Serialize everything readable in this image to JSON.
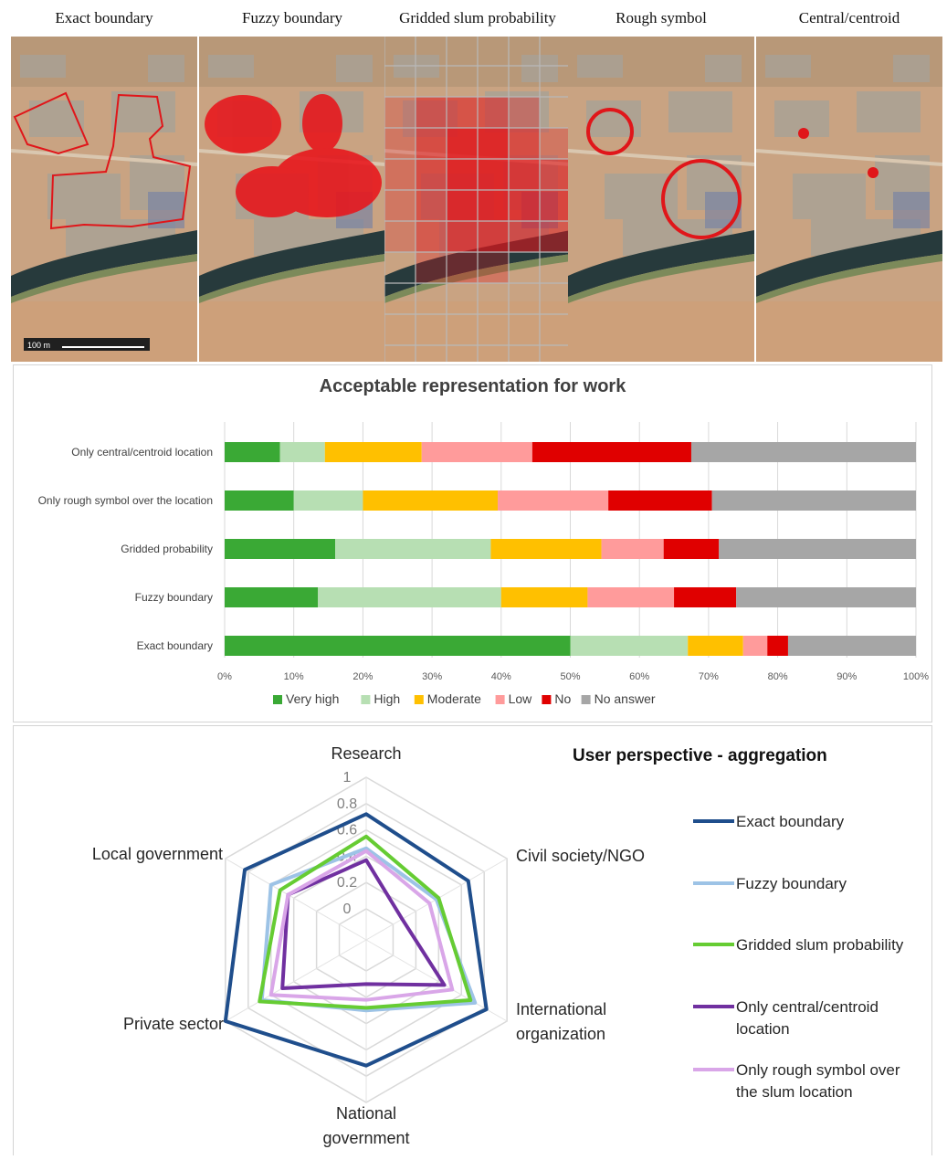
{
  "panels": [
    {
      "title": "Exact boundary",
      "scale_label": "100 m"
    },
    {
      "title": "Fuzzy boundary"
    },
    {
      "title": "Gridded slum probability"
    },
    {
      "title": "Rough symbol"
    },
    {
      "title": "Central/centroid"
    }
  ],
  "colors": {
    "very_high": "#3aa935",
    "high": "#b7dfb3",
    "moderate": "#ffc000",
    "low": "#ff9b9b",
    "no": "#e00000",
    "no_answer": "#a6a6a6",
    "exact": "#1f4e8c",
    "fuzzy": "#9dc3e6",
    "gridded": "#66cc33",
    "centroid": "#7030a0",
    "rough": "#d9a6e8"
  },
  "chart_data": [
    {
      "type": "bar",
      "stacked": true,
      "orientation": "horizontal",
      "title": "Acceptable representation for work",
      "categories": [
        "Only central/centroid location",
        "Only rough symbol over the location",
        "Gridded probability",
        "Fuzzy boundary",
        "Exact boundary"
      ],
      "series": [
        {
          "name": "Very high",
          "color": "#3aa935",
          "values": [
            8,
            10,
            16,
            13.5,
            50
          ]
        },
        {
          "name": "High",
          "color": "#b7dfb3",
          "values": [
            6.5,
            10,
            22.5,
            26.5,
            17
          ]
        },
        {
          "name": "Moderate",
          "color": "#ffc000",
          "values": [
            14,
            19.5,
            16,
            12.5,
            8
          ]
        },
        {
          "name": "Low",
          "color": "#ff9b9b",
          "values": [
            16,
            16,
            9,
            12.5,
            3.5
          ]
        },
        {
          "name": "No",
          "color": "#e00000",
          "values": [
            23,
            15,
            8,
            9,
            3
          ]
        },
        {
          "name": "No answer",
          "color": "#a6a6a6",
          "values": [
            32.5,
            29.5,
            28.5,
            26,
            18.5
          ]
        }
      ],
      "xlim": [
        0,
        100
      ],
      "xticks": [
        "0%",
        "10%",
        "20%",
        "30%",
        "40%",
        "50%",
        "60%",
        "70%",
        "80%",
        "90%",
        "100%"
      ],
      "grid": true,
      "legend": "bottom"
    },
    {
      "type": "radar",
      "title": "User perspective - aggregation",
      "axes": [
        "Research",
        "Civil society/NGO",
        "International organization",
        "National government",
        "Private sector",
        "Local government"
      ],
      "axis_label_lines": [
        [
          "Research"
        ],
        [
          "Civil society/NGO"
        ],
        [
          "International",
          "organization"
        ],
        [
          "National",
          "government"
        ],
        [
          "Private sector"
        ],
        [
          "Local government"
        ]
      ],
      "rticks": [
        "0",
        "0.2",
        "0.4",
        "0.6",
        "0.8",
        "1"
      ],
      "rlim": [
        0,
        1
      ],
      "series": [
        {
          "name": "Exact boundary",
          "legend_lines": [
            "Exact boundary"
          ],
          "color": "#1f4e8c",
          "values": [
            0.72,
            0.66,
            0.82,
            0.72,
            1.0,
            0.83
          ]
        },
        {
          "name": "Fuzzy boundary",
          "legend_lines": [
            "Fuzzy boundary"
          ],
          "color": "#9dc3e6",
          "values": [
            0.46,
            0.38,
            0.72,
            0.3,
            0.68,
            0.6
          ]
        },
        {
          "name": "Gridded slum probability",
          "legend_lines": [
            "Gridded slum probability"
          ],
          "color": "#66cc33",
          "values": [
            0.55,
            0.4,
            0.68,
            0.28,
            0.7,
            0.52
          ]
        },
        {
          "name": "Only central/centroid location",
          "legend_lines": [
            "Only central/centroid location"
          ],
          "legend_display": [
            "Only central/centroid",
            "location"
          ],
          "color": "#7030a0",
          "values": [
            0.37,
            0.08,
            0.45,
            0.1,
            0.5,
            0.45
          ]
        },
        {
          "name": "Only rough symbol over the slum location",
          "legend_display": [
            "Only rough symbol over",
            "the slum location"
          ],
          "color": "#d9a6e8",
          "values": [
            0.44,
            0.32,
            0.52,
            0.22,
            0.6,
            0.45
          ]
        }
      ],
      "legend": "right"
    }
  ]
}
